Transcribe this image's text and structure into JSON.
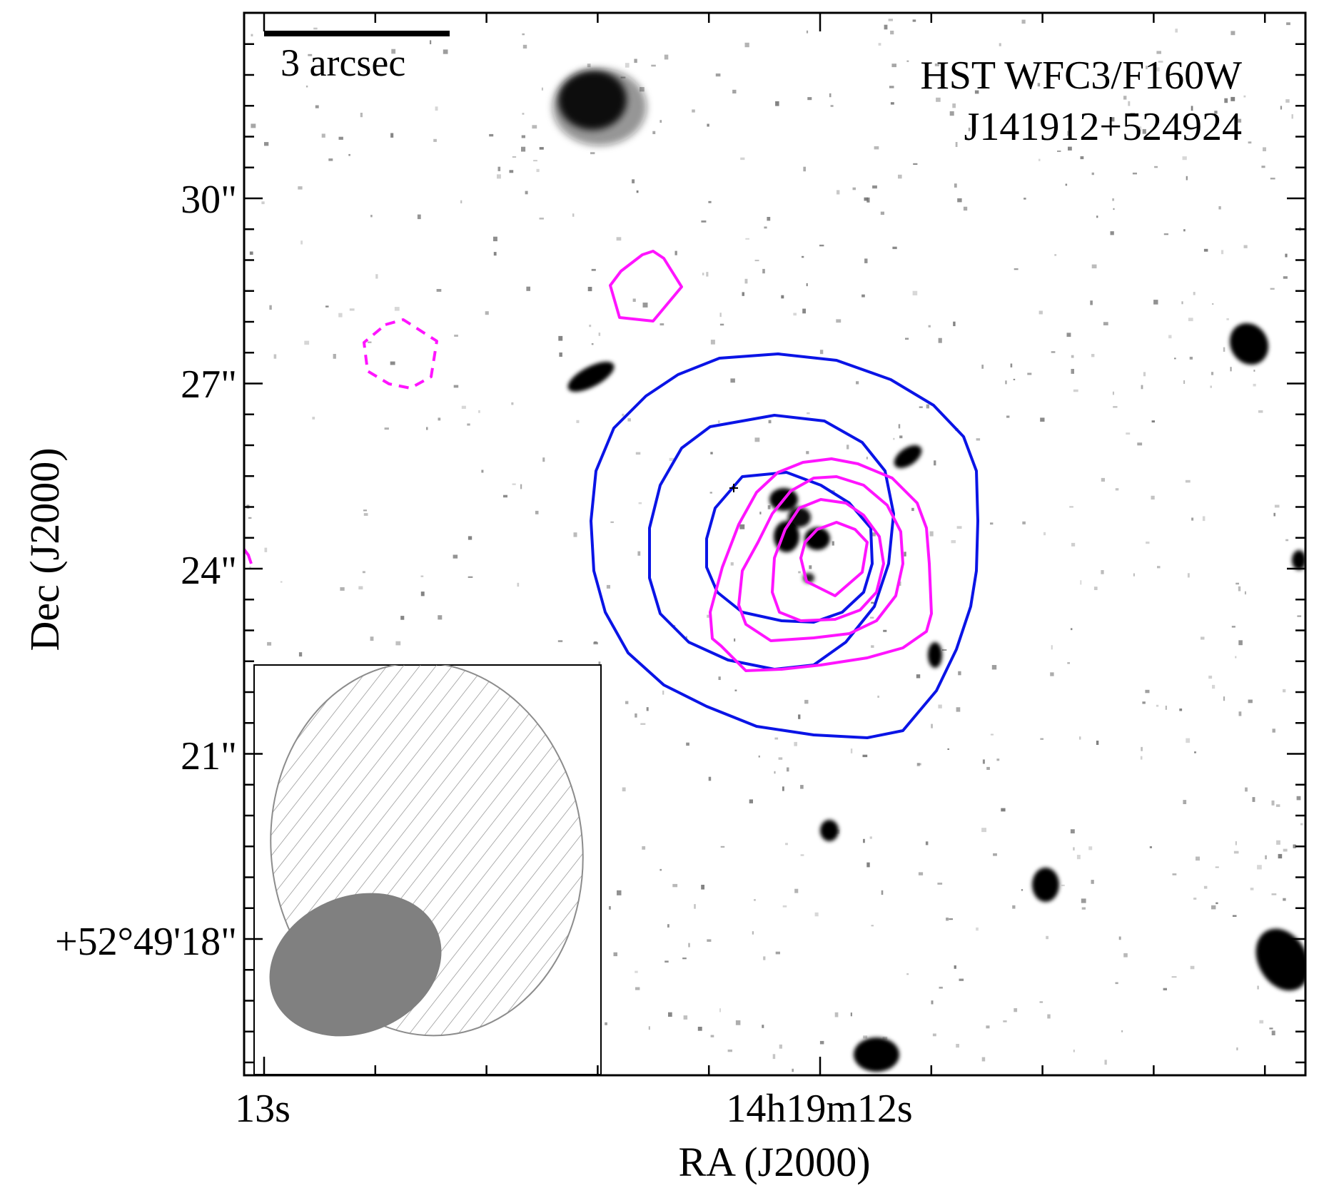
{
  "image": {
    "instrument_label": "HST WFC3/F160W",
    "source_label": "J141912+524924",
    "scale_bar_label": "3 arcsec",
    "x_axis_label": "RA (J2000)",
    "y_axis_label": "Dec (J2000)",
    "x_tick_labels": [
      "13s",
      "14h19m12s"
    ],
    "y_tick_labels": [
      "30\"",
      "27\"",
      "24\"",
      "21\"",
      "+52°49'18\""
    ],
    "colors": {
      "blue_contours": "#0a14e6",
      "magenta_contours": "#ff14ff",
      "beam_filled": "#808080",
      "beam_hatched_outline": "#8c8c8c"
    }
  }
}
